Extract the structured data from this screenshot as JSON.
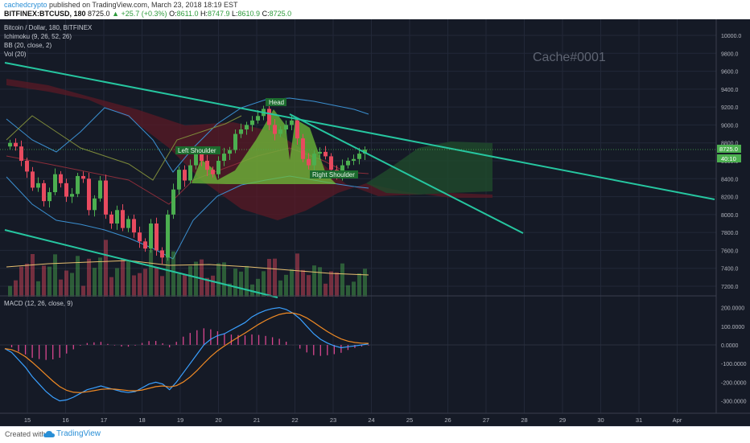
{
  "header": {
    "author": "cachedcrypto",
    "published": "published on TradingView.com, March 23, 2018 18:19 EST",
    "symbol": "BITFINEX:BTCUSD, 180",
    "last": "8725.0",
    "change": "+25.7 (+0.3%)",
    "open_label": "O:",
    "open": "8611.0",
    "high_label": "H:",
    "high": "8747.9",
    "low_label": "L:",
    "low": "8610.9",
    "close_label": "C:",
    "close": "8725.0"
  },
  "legend": {
    "title": "Bitcoin / Dollar, 180, BITFINEX",
    "ichimoku": "Ichimoku (9, 26, 52, 26)",
    "bb": "BB (20, close, 2)",
    "vol": "Vol (20)",
    "macd": "MACD (12, 26, close, 9)"
  },
  "watermark": "Cache#0001",
  "annotations": {
    "left_shoulder": "Left Shoulder",
    "head": "Head",
    "right_shoulder": "Right Shoulder"
  },
  "price_axis": {
    "labels": [
      "10000.0",
      "9800.0",
      "9600.0",
      "9400.0",
      "9200.0",
      "9000.0",
      "8800.0",
      "8600.0",
      "8400.0",
      "8200.0",
      "8000.0",
      "7800.0",
      "7600.0",
      "7400.0",
      "7200.0"
    ],
    "last_price_tag": "8725.0",
    "countdown_tag": "40:10"
  },
  "macd_axis": {
    "labels": [
      "200.0000",
      "100.0000",
      "0.0000",
      "-100.0000",
      "-200.0000",
      "-300.0000"
    ]
  },
  "time_axis": {
    "labels": [
      "15",
      "16",
      "17",
      "18",
      "19",
      "20",
      "21",
      "22",
      "23",
      "24",
      "25",
      "26",
      "27",
      "28",
      "29",
      "30",
      "31",
      "Apr"
    ]
  },
  "colors": {
    "background": "#151a26",
    "candle_up": "#4caf50",
    "candle_down": "#e84a5f",
    "trendline": "#26c6a0",
    "pattern_fill": "#6fbf3a",
    "macd_line": "#3aa0ff",
    "signal_line": "#f08a24",
    "histogram": "#d9468f",
    "bb_band": "#3b8fd0",
    "cloud_bear": "#6b1d2a",
    "cloud_bull": "#1e4a2a"
  },
  "chart_data": {
    "type": "candlestick",
    "symbol": "BITFINEX:BTCUSD",
    "timeframe_minutes": 180,
    "ylim": [
      7150,
      10150
    ],
    "macd_ylim": [
      -350,
      250
    ],
    "close_series": [
      8800,
      8760,
      8600,
      8480,
      8300,
      8350,
      8150,
      8250,
      8450,
      8350,
      8200,
      8230,
      8430,
      8400,
      8050,
      8180,
      8380,
      8000,
      7900,
      8050,
      7850,
      7950,
      7800,
      7700,
      7620,
      7900,
      7600,
      7520,
      8000,
      8280,
      8500,
      8380,
      8550,
      8700,
      8600,
      8500,
      8450,
      8600,
      8680,
      8720,
      8900,
      8950,
      9000,
      9050,
      9100,
      9180,
      9000,
      8900,
      8950,
      9000,
      9050,
      8850,
      8620,
      8550,
      8680,
      8700,
      8650,
      8500,
      8450,
      8550,
      8600,
      8620,
      8680,
      8725
    ],
    "macd_series": [
      -20,
      -40,
      -80,
      -120,
      -170,
      -210,
      -250,
      -280,
      -300,
      -295,
      -280,
      -260,
      -240,
      -230,
      -220,
      -230,
      -240,
      -250,
      -255,
      -250,
      -230,
      -210,
      -200,
      -210,
      -240,
      -200,
      -150,
      -100,
      -50,
      0,
      30,
      50,
      60,
      80,
      100,
      120,
      150,
      170,
      185,
      195,
      200,
      190,
      170,
      140,
      100,
      60,
      30,
      10,
      -5,
      -15,
      -10,
      -5,
      0,
      5
    ]
  }
}
